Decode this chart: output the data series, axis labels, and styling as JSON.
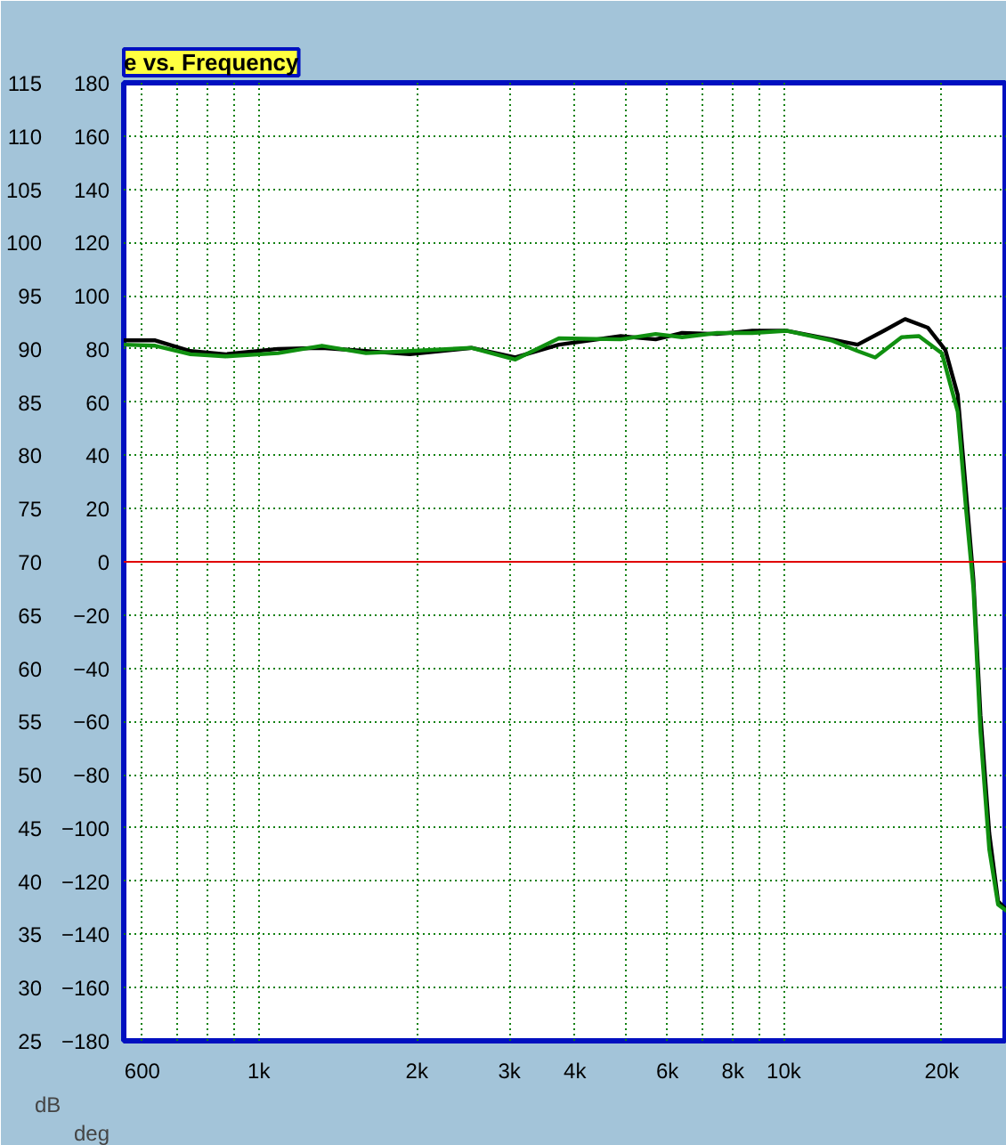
{
  "chart_data": {
    "type": "line",
    "title": "e vs. Frequency",
    "ylabel": "dB",
    "y2label": "deg",
    "log": "x",
    "grid": true,
    "line_style": "solid",
    "marker": "none",
    "xlim": [
      553,
      26600
    ],
    "xticks": [
      {
        "value": 600,
        "label": "600"
      },
      {
        "value": 700,
        "label": null
      },
      {
        "value": 800,
        "label": null
      },
      {
        "value": 900,
        "label": null
      },
      {
        "value": 1000,
        "label": "1k"
      },
      {
        "value": 2000,
        "label": "2k"
      },
      {
        "value": 3000,
        "label": "3k"
      },
      {
        "value": 4000,
        "label": "4k"
      },
      {
        "value": 5000,
        "label": null
      },
      {
        "value": 6000,
        "label": "6k"
      },
      {
        "value": 7000,
        "label": null
      },
      {
        "value": 8000,
        "label": "8k"
      },
      {
        "value": 9000,
        "label": null
      },
      {
        "value": 10000,
        "label": "10k"
      },
      {
        "value": 20000,
        "label": "20k"
      }
    ],
    "ylim": [
      25,
      115
    ],
    "yticks": [
      25,
      30,
      35,
      40,
      45,
      50,
      55,
      60,
      65,
      70,
      75,
      80,
      85,
      90,
      95,
      100,
      105,
      110,
      115
    ],
    "y2lim": [
      -180,
      180
    ],
    "y2ticks": [
      -180,
      -160,
      -140,
      -120,
      -100,
      -80,
      -60,
      -40,
      -20,
      0,
      20,
      40,
      60,
      80,
      100,
      120,
      140,
      160,
      180
    ],
    "ref_lines": [
      {
        "axis": "y",
        "value": 70,
        "color": "#e00000",
        "line_style": "solid"
      }
    ],
    "series": [
      {
        "color": "#000000",
        "x": [
          553,
          635,
          741,
          864,
          1088,
          1319,
          1600,
          1940,
          2540,
          3080,
          3730,
          4890,
          5700,
          6400,
          7460,
          8710,
          10150,
          12310,
          13820,
          15510,
          17020,
          18800,
          20310,
          21440,
          22270,
          22970,
          23690,
          24620,
          25590,
          26590
        ],
        "values": [
          90.8,
          90.8,
          89.8,
          89.5,
          90.0,
          90.1,
          89.8,
          89.5,
          90.1,
          89.2,
          90.4,
          91.2,
          90.9,
          91.5,
          91.4,
          91.7,
          91.7,
          90.9,
          90.4,
          91.7,
          92.8,
          92.0,
          89.9,
          85.7,
          76.2,
          68.3,
          55.6,
          44.5,
          38.1,
          37.3
        ]
      },
      {
        "color": "#109010",
        "x": [
          553,
          635,
          741,
          864,
          1088,
          1319,
          1600,
          1940,
          2540,
          3080,
          3730,
          4890,
          5700,
          6400,
          7460,
          8710,
          10150,
          12310,
          13820,
          14930,
          16760,
          18090,
          20000,
          21440,
          22270,
          22970,
          23690,
          24620,
          25590,
          26590
        ],
        "values": [
          90.4,
          90.3,
          89.5,
          89.3,
          89.6,
          90.3,
          89.6,
          89.8,
          90.1,
          89.0,
          91.0,
          90.9,
          91.4,
          91.1,
          91.5,
          91.5,
          91.7,
          90.8,
          89.8,
          89.2,
          91.1,
          91.2,
          89.6,
          84.1,
          74.6,
          67.5,
          54.0,
          43.0,
          37.8,
          37.2
        ]
      }
    ]
  }
}
